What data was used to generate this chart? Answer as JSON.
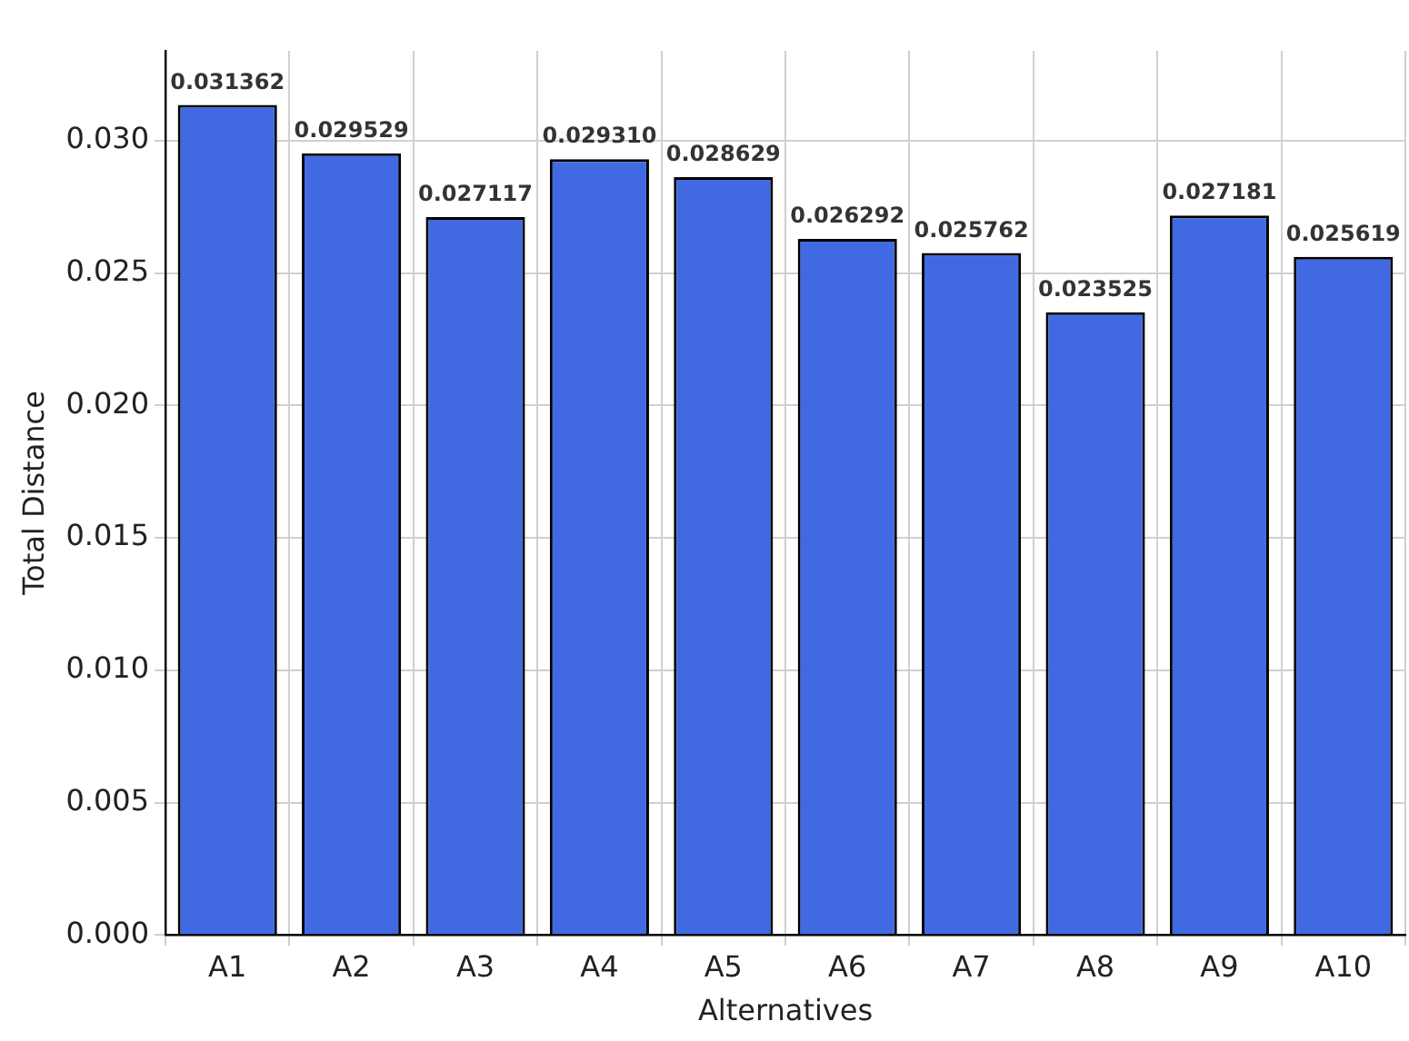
{
  "chart_data": {
    "type": "bar",
    "xlabel": "Alternatives",
    "ylabel": "Total Distance",
    "categories": [
      "A1",
      "A2",
      "A3",
      "A4",
      "A5",
      "A6",
      "A7",
      "A8",
      "A9",
      "A10"
    ],
    "values": [
      0.031362,
      0.029529,
      0.027117,
      0.02931,
      0.028629,
      0.026292,
      0.025762,
      0.023525,
      0.027181,
      0.025619
    ],
    "value_labels": [
      "0.031362",
      "0.029529",
      "0.027117",
      "0.029310",
      "0.028629",
      "0.026292",
      "0.025762",
      "0.023525",
      "0.027181",
      "0.025619"
    ],
    "color": "#4169e1",
    "ylim": [
      0,
      0.0334
    ],
    "yticks": [
      {
        "value": 0,
        "label": "0.000"
      },
      {
        "value": 0.005,
        "label": "0.005"
      },
      {
        "value": 0.01,
        "label": "0.010"
      },
      {
        "value": 0.015,
        "label": "0.015"
      },
      {
        "value": 0.02,
        "label": "0.020"
      },
      {
        "value": 0.025,
        "label": "0.025"
      },
      {
        "value": 0.03,
        "label": "0.030"
      }
    ],
    "grid": true,
    "legend": false
  }
}
